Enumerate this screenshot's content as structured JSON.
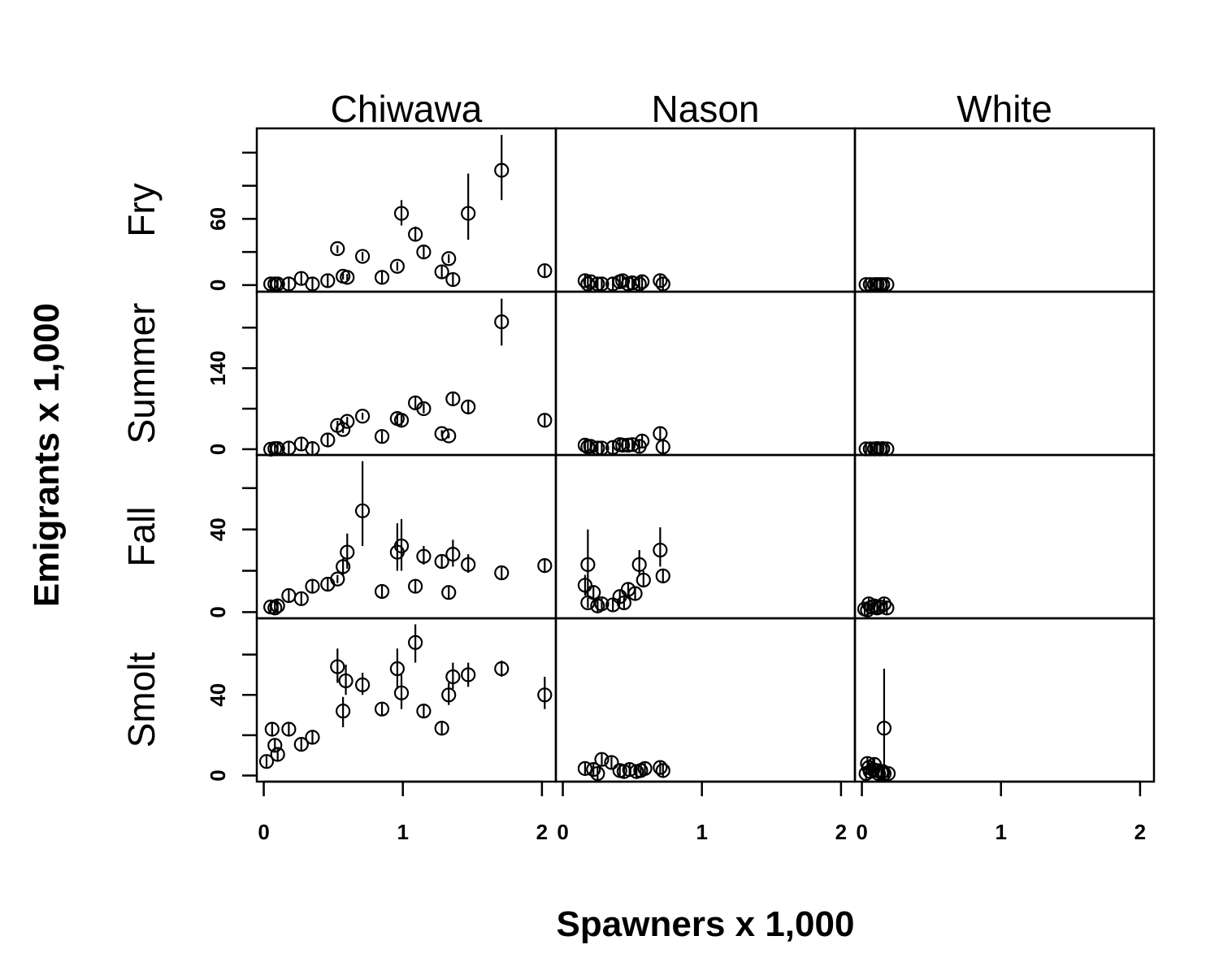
{
  "chart_data": {
    "type": "scatter",
    "xlabel": "Spawners x 1,000",
    "ylabel": "Emigrants x 1,000",
    "columns": [
      "Chiwawa",
      "Nason",
      "White"
    ],
    "rows": [
      "Fry",
      "Summer",
      "Fall",
      "Smolt"
    ],
    "xlim": [
      -0.05,
      2.1
    ],
    "x_ticks": [
      "0",
      "1",
      "2"
    ],
    "grid": false,
    "rows_axes": [
      {
        "name": "Fry",
        "ylim": [
          -6,
          142
        ],
        "y_ticks": [
          0,
          30,
          60,
          90,
          120
        ],
        "y_labels": [
          "0",
          "",
          "60",
          "",
          ""
        ]
      },
      {
        "name": "Summer",
        "ylim": [
          -10,
          272
        ],
        "y_ticks": [
          0,
          70,
          140,
          210
        ],
        "y_labels": [
          "0",
          "",
          "140",
          ""
        ]
      },
      {
        "name": "Fall",
        "ylim": [
          -3,
          76
        ],
        "y_ticks": [
          0,
          20,
          40,
          60
        ],
        "y_labels": [
          "0",
          "",
          "40",
          ""
        ]
      },
      {
        "name": "Smolt",
        "ylim": [
          -3,
          78
        ],
        "y_ticks": [
          0,
          20,
          40,
          60
        ],
        "y_labels": [
          "0",
          "",
          "40",
          ""
        ]
      }
    ],
    "panels": [
      {
        "column": "Chiwawa",
        "row": "Fry",
        "points": [
          {
            "x": 0.05,
            "y": 1
          },
          {
            "x": 0.08,
            "y": 1
          },
          {
            "x": 0.1,
            "y": 1
          },
          {
            "x": 0.18,
            "y": 1
          },
          {
            "x": 0.27,
            "y": 6
          },
          {
            "x": 0.35,
            "y": 1
          },
          {
            "x": 0.46,
            "y": 4
          },
          {
            "x": 0.53,
            "y": 33,
            "lo": 29,
            "hi": 36
          },
          {
            "x": 0.57,
            "y": 8,
            "lo": 5,
            "hi": 11
          },
          {
            "x": 0.6,
            "y": 7,
            "lo": 4,
            "hi": 10
          },
          {
            "x": 0.71,
            "y": 26,
            "lo": 22,
            "hi": 30
          },
          {
            "x": 0.85,
            "y": 7
          },
          {
            "x": 0.96,
            "y": 17,
            "lo": 13,
            "hi": 21
          },
          {
            "x": 0.99,
            "y": 65,
            "lo": 54,
            "hi": 77
          },
          {
            "x": 1.09,
            "y": 46,
            "lo": 40,
            "hi": 53
          },
          {
            "x": 1.15,
            "y": 30,
            "lo": 25,
            "hi": 36
          },
          {
            "x": 1.28,
            "y": 12
          },
          {
            "x": 1.33,
            "y": 24,
            "lo": 20,
            "hi": 28
          },
          {
            "x": 1.36,
            "y": 5
          },
          {
            "x": 1.47,
            "y": 65,
            "lo": 41,
            "hi": 101
          },
          {
            "x": 1.71,
            "y": 104,
            "lo": 77,
            "hi": 136
          },
          {
            "x": 2.02,
            "y": 13
          }
        ]
      },
      {
        "column": "Nason",
        "row": "Fry",
        "points": [
          {
            "x": 0.16,
            "y": 4
          },
          {
            "x": 0.18,
            "y": 1
          },
          {
            "x": 0.2,
            "y": 3
          },
          {
            "x": 0.25,
            "y": 1
          },
          {
            "x": 0.28,
            "y": 1
          },
          {
            "x": 0.36,
            "y": 1
          },
          {
            "x": 0.41,
            "y": 3
          },
          {
            "x": 0.43,
            "y": 4
          },
          {
            "x": 0.47,
            "y": 1
          },
          {
            "x": 0.5,
            "y": 2
          },
          {
            "x": 0.55,
            "y": 1
          },
          {
            "x": 0.57,
            "y": 3
          },
          {
            "x": 0.7,
            "y": 4
          },
          {
            "x": 0.72,
            "y": 1
          }
        ]
      },
      {
        "column": "White",
        "row": "Fry",
        "points": [
          {
            "x": 0.03,
            "y": 0.5
          },
          {
            "x": 0.06,
            "y": 0.5
          },
          {
            "x": 0.09,
            "y": 0.5
          },
          {
            "x": 0.11,
            "y": 0.5
          },
          {
            "x": 0.13,
            "y": 0.5
          },
          {
            "x": 0.15,
            "y": 0.5
          },
          {
            "x": 0.18,
            "y": 0.5
          }
        ]
      },
      {
        "column": "Chiwawa",
        "row": "Summer",
        "points": [
          {
            "x": 0.05,
            "y": 0
          },
          {
            "x": 0.08,
            "y": 1
          },
          {
            "x": 0.1,
            "y": 1
          },
          {
            "x": 0.18,
            "y": 2
          },
          {
            "x": 0.27,
            "y": 9
          },
          {
            "x": 0.35,
            "y": 1
          },
          {
            "x": 0.46,
            "y": 16
          },
          {
            "x": 0.53,
            "y": 41,
            "lo": 33,
            "hi": 49
          },
          {
            "x": 0.57,
            "y": 34,
            "lo": 28,
            "hi": 40
          },
          {
            "x": 0.6,
            "y": 48,
            "lo": 40,
            "hi": 56
          },
          {
            "x": 0.71,
            "y": 57,
            "lo": 51,
            "hi": 63
          },
          {
            "x": 0.85,
            "y": 22
          },
          {
            "x": 0.96,
            "y": 53,
            "lo": 43,
            "hi": 62
          },
          {
            "x": 0.99,
            "y": 50,
            "lo": 40,
            "hi": 60
          },
          {
            "x": 1.09,
            "y": 80,
            "lo": 68,
            "hi": 92
          },
          {
            "x": 1.15,
            "y": 70,
            "lo": 62,
            "hi": 79
          },
          {
            "x": 1.28,
            "y": 27,
            "lo": 22,
            "hi": 33
          },
          {
            "x": 1.33,
            "y": 23,
            "lo": 19,
            "hi": 28
          },
          {
            "x": 1.36,
            "y": 87,
            "lo": 77,
            "hi": 98
          },
          {
            "x": 1.47,
            "y": 73,
            "lo": 61,
            "hi": 85
          },
          {
            "x": 1.71,
            "y": 220,
            "lo": 179,
            "hi": 260
          },
          {
            "x": 2.02,
            "y": 50
          }
        ]
      },
      {
        "column": "Nason",
        "row": "Summer",
        "points": [
          {
            "x": 0.16,
            "y": 7
          },
          {
            "x": 0.18,
            "y": 4
          },
          {
            "x": 0.2,
            "y": 5
          },
          {
            "x": 0.25,
            "y": 2
          },
          {
            "x": 0.28,
            "y": 2
          },
          {
            "x": 0.36,
            "y": 3
          },
          {
            "x": 0.41,
            "y": 8
          },
          {
            "x": 0.43,
            "y": 7
          },
          {
            "x": 0.47,
            "y": 7
          },
          {
            "x": 0.5,
            "y": 8
          },
          {
            "x": 0.55,
            "y": 5
          },
          {
            "x": 0.57,
            "y": 14
          },
          {
            "x": 0.7,
            "y": 27
          },
          {
            "x": 0.72,
            "y": 4
          }
        ]
      },
      {
        "column": "White",
        "row": "Summer",
        "points": [
          {
            "x": 0.03,
            "y": 0.5
          },
          {
            "x": 0.06,
            "y": 0.5
          },
          {
            "x": 0.09,
            "y": 0.5
          },
          {
            "x": 0.11,
            "y": 1
          },
          {
            "x": 0.13,
            "y": 0.5
          },
          {
            "x": 0.15,
            "y": 1
          },
          {
            "x": 0.18,
            "y": 0.5
          }
        ]
      },
      {
        "column": "Chiwawa",
        "row": "Fall",
        "points": [
          {
            "x": 0.05,
            "y": 2.5
          },
          {
            "x": 0.08,
            "y": 2
          },
          {
            "x": 0.1,
            "y": 3
          },
          {
            "x": 0.18,
            "y": 8
          },
          {
            "x": 0.27,
            "y": 6.5
          },
          {
            "x": 0.35,
            "y": 12.5
          },
          {
            "x": 0.46,
            "y": 13.5
          },
          {
            "x": 0.53,
            "y": 16,
            "lo": 14,
            "hi": 18
          },
          {
            "x": 0.57,
            "y": 22,
            "lo": 18,
            "hi": 26
          },
          {
            "x": 0.6,
            "y": 29,
            "lo": 21,
            "hi": 38
          },
          {
            "x": 0.71,
            "y": 49,
            "lo": 32,
            "hi": 73
          },
          {
            "x": 0.85,
            "y": 10
          },
          {
            "x": 0.96,
            "y": 29,
            "lo": 20,
            "hi": 43
          },
          {
            "x": 0.99,
            "y": 32,
            "lo": 20,
            "hi": 45
          },
          {
            "x": 1.09,
            "y": 12.5
          },
          {
            "x": 1.15,
            "y": 27,
            "lo": 23,
            "hi": 32
          },
          {
            "x": 1.28,
            "y": 24.5,
            "lo": 21,
            "hi": 28
          },
          {
            "x": 1.33,
            "y": 9.5
          },
          {
            "x": 1.36,
            "y": 28,
            "lo": 22,
            "hi": 35
          },
          {
            "x": 1.47,
            "y": 23,
            "lo": 19,
            "hi": 28
          },
          {
            "x": 1.71,
            "y": 19
          },
          {
            "x": 2.02,
            "y": 22.5,
            "lo": 19,
            "hi": 26
          }
        ]
      },
      {
        "column": "Nason",
        "row": "Fall",
        "points": [
          {
            "x": 0.16,
            "y": 13,
            "lo": 8,
            "hi": 18
          },
          {
            "x": 0.18,
            "y": 4.5,
            "lo": 2,
            "hi": 7
          },
          {
            "x": 0.18,
            "y": 23,
            "lo": 8,
            "hi": 40
          },
          {
            "x": 0.22,
            "y": 9.5,
            "lo": 6,
            "hi": 13
          },
          {
            "x": 0.25,
            "y": 3
          },
          {
            "x": 0.28,
            "y": 4
          },
          {
            "x": 0.36,
            "y": 3.5
          },
          {
            "x": 0.41,
            "y": 7.5
          },
          {
            "x": 0.44,
            "y": 4.5
          },
          {
            "x": 0.47,
            "y": 11
          },
          {
            "x": 0.52,
            "y": 9,
            "lo": 6,
            "hi": 12
          },
          {
            "x": 0.55,
            "y": 23,
            "lo": 18,
            "hi": 30
          },
          {
            "x": 0.58,
            "y": 15.5,
            "lo": 12,
            "hi": 20
          },
          {
            "x": 0.7,
            "y": 30,
            "lo": 22,
            "hi": 41
          },
          {
            "x": 0.72,
            "y": 17.5,
            "lo": 14,
            "hi": 21
          }
        ]
      },
      {
        "column": "White",
        "row": "Fall",
        "points": [
          {
            "x": 0.02,
            "y": 1.5
          },
          {
            "x": 0.04,
            "y": 1
          },
          {
            "x": 0.05,
            "y": 4
          },
          {
            "x": 0.07,
            "y": 2.5
          },
          {
            "x": 0.09,
            "y": 3
          },
          {
            "x": 0.11,
            "y": 2
          },
          {
            "x": 0.13,
            "y": 2.5
          },
          {
            "x": 0.16,
            "y": 4
          },
          {
            "x": 0.18,
            "y": 2
          }
        ]
      },
      {
        "column": "Chiwawa",
        "row": "Smolt",
        "points": [
          {
            "x": 0.02,
            "y": 7
          },
          {
            "x": 0.06,
            "y": 23
          },
          {
            "x": 0.08,
            "y": 15
          },
          {
            "x": 0.1,
            "y": 10.5
          },
          {
            "x": 0.18,
            "y": 23
          },
          {
            "x": 0.27,
            "y": 15.5
          },
          {
            "x": 0.35,
            "y": 19
          },
          {
            "x": 0.53,
            "y": 54,
            "lo": 46,
            "hi": 63
          },
          {
            "x": 0.57,
            "y": 32,
            "lo": 24,
            "hi": 39
          },
          {
            "x": 0.59,
            "y": 47,
            "lo": 40,
            "hi": 55
          },
          {
            "x": 0.71,
            "y": 45,
            "lo": 40,
            "hi": 51
          },
          {
            "x": 0.85,
            "y": 33,
            "lo": 30,
            "hi": 36
          },
          {
            "x": 0.96,
            "y": 53,
            "lo": 43,
            "hi": 63
          },
          {
            "x": 0.99,
            "y": 41,
            "lo": 33,
            "hi": 50
          },
          {
            "x": 1.09,
            "y": 66,
            "lo": 56,
            "hi": 75
          },
          {
            "x": 1.15,
            "y": 32
          },
          {
            "x": 1.28,
            "y": 23.5
          },
          {
            "x": 1.33,
            "y": 40,
            "lo": 35,
            "hi": 46
          },
          {
            "x": 1.36,
            "y": 49,
            "lo": 43,
            "hi": 56
          },
          {
            "x": 1.47,
            "y": 50,
            "lo": 44,
            "hi": 56
          },
          {
            "x": 1.71,
            "y": 53,
            "lo": 49,
            "hi": 57
          },
          {
            "x": 2.02,
            "y": 40,
            "lo": 33,
            "hi": 49
          }
        ]
      },
      {
        "column": "Nason",
        "row": "Smolt",
        "points": [
          {
            "x": 0.16,
            "y": 3.5
          },
          {
            "x": 0.22,
            "y": 3
          },
          {
            "x": 0.25,
            "y": 1
          },
          {
            "x": 0.28,
            "y": 8
          },
          {
            "x": 0.35,
            "y": 6.5
          },
          {
            "x": 0.41,
            "y": 2.5
          },
          {
            "x": 0.44,
            "y": 2
          },
          {
            "x": 0.48,
            "y": 3
          },
          {
            "x": 0.53,
            "y": 2
          },
          {
            "x": 0.56,
            "y": 2.5
          },
          {
            "x": 0.59,
            "y": 3.5
          },
          {
            "x": 0.7,
            "y": 4
          },
          {
            "x": 0.72,
            "y": 2.5
          }
        ]
      },
      {
        "column": "White",
        "row": "Smolt",
        "points": [
          {
            "x": 0.03,
            "y": 1
          },
          {
            "x": 0.04,
            "y": 6
          },
          {
            "x": 0.05,
            "y": 4
          },
          {
            "x": 0.06,
            "y": 2
          },
          {
            "x": 0.08,
            "y": 3
          },
          {
            "x": 0.09,
            "y": 5.5
          },
          {
            "x": 0.11,
            "y": 2.5
          },
          {
            "x": 0.12,
            "y": 1
          },
          {
            "x": 0.14,
            "y": 1.5
          },
          {
            "x": 0.15,
            "y": 2
          },
          {
            "x": 0.16,
            "y": 1
          },
          {
            "x": 0.19,
            "y": 1
          },
          {
            "x": 0.16,
            "y": 23.5,
            "lo": 5,
            "hi": 53
          }
        ]
      }
    ]
  }
}
